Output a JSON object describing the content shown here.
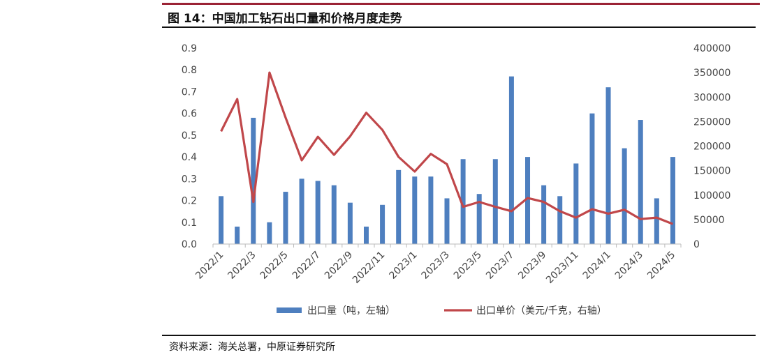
{
  "figure": {
    "title": "图 14：中国加工钻石出口量和价格月度走势",
    "source": "资料来源：海关总署，中原证券研究所"
  },
  "colors": {
    "bar": "#4e7fbf",
    "line": "#c0474a",
    "accent_rule": "#9b2335"
  },
  "chart_data": {
    "type": "bar",
    "categories": [
      "2022/1",
      "2022/2",
      "2022/3",
      "2022/4",
      "2022/5",
      "2022/6",
      "2022/7",
      "2022/8",
      "2022/9",
      "2022/10",
      "2022/11",
      "2022/12",
      "2023/1",
      "2023/2",
      "2023/3",
      "2023/4",
      "2023/5",
      "2023/6",
      "2023/7",
      "2023/8",
      "2023/9",
      "2023/10",
      "2023/11",
      "2023/12",
      "2024/1",
      "2024/2",
      "2024/3",
      "2024/4",
      "2024/5"
    ],
    "x_tick_labels": [
      "2022/1",
      "2022/3",
      "2022/5",
      "2022/7",
      "2022/9",
      "2022/11",
      "2023/1",
      "2023/3",
      "2023/5",
      "2023/7",
      "2023/9",
      "2023/11",
      "2024/1",
      "2024/3",
      "2024/5"
    ],
    "series": [
      {
        "name": "出口量（吨，左轴）",
        "type": "bar",
        "axis": "left",
        "values": [
          0.22,
          0.08,
          0.58,
          0.1,
          0.24,
          0.3,
          0.29,
          0.27,
          0.19,
          0.08,
          0.18,
          0.34,
          0.31,
          0.31,
          0.21,
          0.39,
          0.23,
          0.39,
          0.77,
          0.4,
          0.27,
          0.22,
          0.37,
          0.6,
          0.72,
          0.44,
          0.57,
          0.21,
          0.4
        ]
      },
      {
        "name": "出口单价（美元/千克，右轴）",
        "type": "line",
        "axis": "right",
        "values": [
          230000,
          296000,
          86000,
          350000,
          258000,
          171000,
          219000,
          182000,
          220000,
          268000,
          233000,
          178000,
          148000,
          184000,
          163000,
          76000,
          86000,
          76000,
          67000,
          94000,
          86000,
          67000,
          54000,
          71000,
          62000,
          70000,
          51000,
          54000,
          41000
        ]
      }
    ],
    "y_left": {
      "ticks": [
        "0.0",
        "0.1",
        "0.2",
        "0.3",
        "0.4",
        "0.5",
        "0.6",
        "0.7",
        "0.8",
        "0.9"
      ],
      "ylim": [
        0,
        0.9
      ]
    },
    "y_right": {
      "ticks": [
        "0",
        "50000",
        "100000",
        "150000",
        "200000",
        "250000",
        "300000",
        "350000",
        "400000"
      ],
      "ylim": [
        0,
        400000
      ]
    },
    "legend": "bottom",
    "grid": false
  }
}
